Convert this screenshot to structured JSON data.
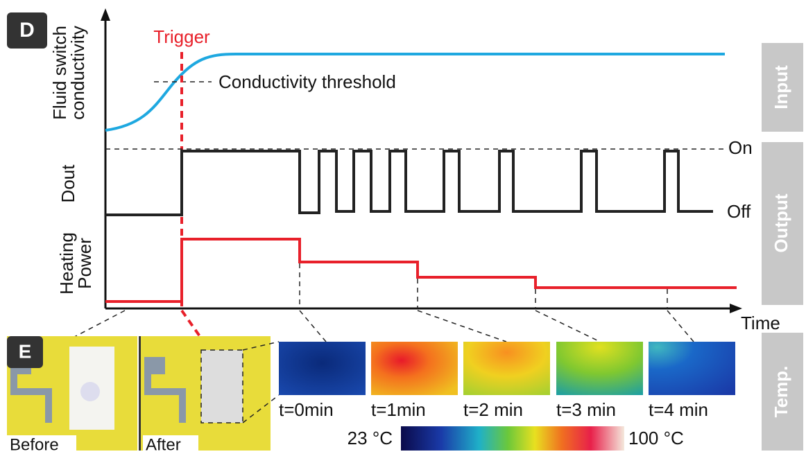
{
  "panel_d": {
    "label": "D",
    "trigger": "Trigger",
    "threshold": "Conductivity threshold",
    "y_labels": [
      [
        "Fluid switch",
        "conductivity"
      ],
      [
        "Dout"
      ],
      [
        "Heating",
        "Power"
      ]
    ],
    "on": "On",
    "off": "Off",
    "x_label": "Time"
  },
  "side_tabs": [
    "Input",
    "Output",
    "Temp."
  ],
  "panel_e": {
    "label": "E",
    "photos": [
      "Before",
      "After"
    ],
    "thermal": [
      "t=0min",
      "t=1min",
      "t=2 min",
      "t=3 min",
      "t=4 min"
    ],
    "scale": {
      "min": "23 °C",
      "max": "100 °C"
    }
  }
}
